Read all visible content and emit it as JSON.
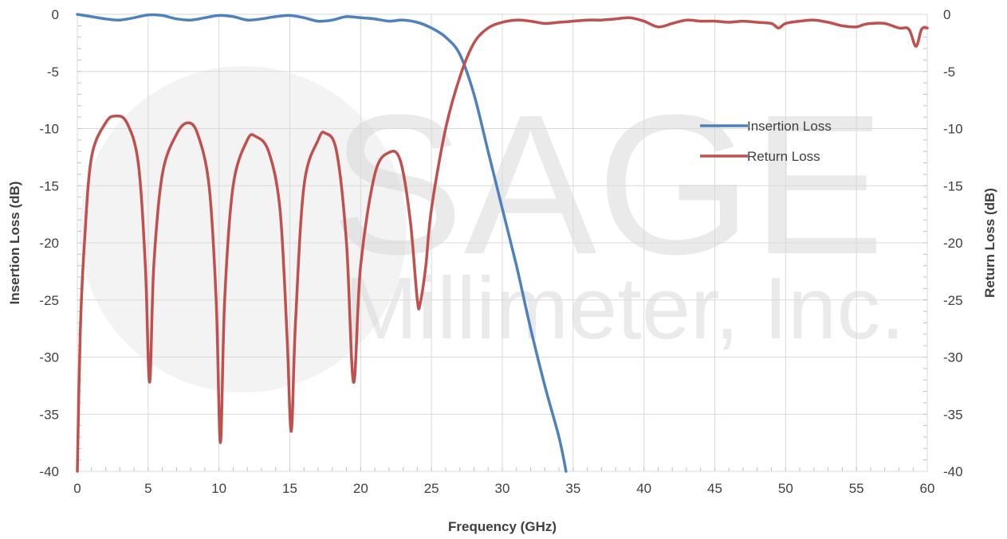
{
  "chart_data": {
    "type": "line",
    "xlabel": "Frequency (GHz)",
    "ylabel": "Insertion Loss (dB)",
    "y2label": "Return Loss (dB)",
    "xlim": [
      0,
      60
    ],
    "ylim": [
      -40,
      0
    ],
    "y2lim": [
      -40,
      0
    ],
    "x_ticks": [
      "0",
      "5",
      "10",
      "15",
      "20",
      "25",
      "30",
      "35",
      "40",
      "45",
      "50",
      "55",
      "60"
    ],
    "y_ticks": [
      "0",
      "-5",
      "-10",
      "-15",
      "-20",
      "-25",
      "-30",
      "-35",
      "-40"
    ],
    "y2_ticks": [
      "0",
      "-5",
      "-10",
      "-15",
      "-20",
      "-25",
      "-30",
      "-35",
      "-40"
    ],
    "grid": true,
    "legend_position": "upper-right",
    "watermark": {
      "line1": "SAGE",
      "line2": "Millimeter, Inc."
    },
    "series": [
      {
        "name": "Insertion Loss",
        "color": "#4f81bd",
        "points": [
          [
            0,
            0
          ],
          [
            1,
            -0.2
          ],
          [
            2,
            -0.4
          ],
          [
            3,
            -0.5
          ],
          [
            4,
            -0.3
          ],
          [
            5,
            -0.05
          ],
          [
            6,
            -0.1
          ],
          [
            7,
            -0.4
          ],
          [
            8,
            -0.5
          ],
          [
            9,
            -0.3
          ],
          [
            10,
            -0.1
          ],
          [
            11,
            -0.2
          ],
          [
            12,
            -0.5
          ],
          [
            13,
            -0.4
          ],
          [
            14,
            -0.2
          ],
          [
            15,
            -0.1
          ],
          [
            16,
            -0.3
          ],
          [
            17,
            -0.6
          ],
          [
            18,
            -0.5
          ],
          [
            19,
            -0.2
          ],
          [
            20,
            -0.3
          ],
          [
            21,
            -0.4
          ],
          [
            22,
            -0.6
          ],
          [
            23,
            -0.5
          ],
          [
            24,
            -0.7
          ],
          [
            25,
            -1.2
          ],
          [
            26,
            -2.0
          ],
          [
            27,
            -3.5
          ],
          [
            28,
            -7.0
          ],
          [
            29,
            -12.0
          ],
          [
            30,
            -17.0
          ],
          [
            31,
            -22.0
          ],
          [
            32,
            -27.5
          ],
          [
            33,
            -32.5
          ],
          [
            34,
            -37.0
          ],
          [
            34.5,
            -40.0
          ]
        ]
      },
      {
        "name": "Return Loss",
        "color": "#c0504d",
        "points": [
          [
            0,
            -40
          ],
          [
            0.2,
            -28
          ],
          [
            0.5,
            -20
          ],
          [
            1,
            -12.5
          ],
          [
            2,
            -9.5
          ],
          [
            2.7,
            -8.9
          ],
          [
            3.5,
            -9.5
          ],
          [
            4.3,
            -13
          ],
          [
            4.8,
            -22
          ],
          [
            5.1,
            -32.2
          ],
          [
            5.4,
            -22
          ],
          [
            6,
            -14
          ],
          [
            7,
            -10.5
          ],
          [
            7.8,
            -9.5
          ],
          [
            8.5,
            -10.5
          ],
          [
            9.3,
            -15
          ],
          [
            9.8,
            -25
          ],
          [
            10.1,
            -37.5
          ],
          [
            10.4,
            -25
          ],
          [
            11,
            -15
          ],
          [
            12,
            -11
          ],
          [
            12.6,
            -10.7
          ],
          [
            13.5,
            -12
          ],
          [
            14.3,
            -17
          ],
          [
            14.8,
            -28
          ],
          [
            15.1,
            -36.5
          ],
          [
            15.4,
            -27
          ],
          [
            16,
            -15
          ],
          [
            17,
            -11
          ],
          [
            17.5,
            -10.4
          ],
          [
            18.3,
            -12
          ],
          [
            19,
            -20
          ],
          [
            19.5,
            -32.2
          ],
          [
            20,
            -22
          ],
          [
            21,
            -14
          ],
          [
            22,
            -12.1
          ],
          [
            22.8,
            -12.8
          ],
          [
            23.5,
            -18
          ],
          [
            24,
            -25
          ],
          [
            24.2,
            -25.3
          ],
          [
            24.6,
            -22
          ],
          [
            25,
            -17
          ],
          [
            26,
            -10
          ],
          [
            27,
            -5.5
          ],
          [
            28,
            -2.5
          ],
          [
            29,
            -1.2
          ],
          [
            30,
            -0.7
          ],
          [
            31,
            -0.5
          ],
          [
            32,
            -0.6
          ],
          [
            33,
            -0.8
          ],
          [
            34,
            -0.7
          ],
          [
            35,
            -0.6
          ],
          [
            36,
            -0.5
          ],
          [
            37,
            -0.5
          ],
          [
            38,
            -0.4
          ],
          [
            39,
            -0.3
          ],
          [
            40,
            -0.6
          ],
          [
            41,
            -1.1
          ],
          [
            42,
            -0.8
          ],
          [
            43,
            -0.5
          ],
          [
            44,
            -0.6
          ],
          [
            45,
            -0.6
          ],
          [
            46,
            -0.7
          ],
          [
            47,
            -0.6
          ],
          [
            48,
            -0.7
          ],
          [
            49,
            -0.8
          ],
          [
            49.5,
            -1.2
          ],
          [
            50,
            -0.8
          ],
          [
            51,
            -0.6
          ],
          [
            52,
            -0.5
          ],
          [
            53,
            -0.7
          ],
          [
            54,
            -1.0
          ],
          [
            55,
            -1.1
          ],
          [
            55.5,
            -0.9
          ],
          [
            56,
            -0.8
          ],
          [
            57,
            -0.8
          ],
          [
            58,
            -1.2
          ],
          [
            58.7,
            -1.3
          ],
          [
            59.2,
            -2.8
          ],
          [
            59.6,
            -1.3
          ],
          [
            60,
            -1.2
          ]
        ]
      }
    ]
  }
}
